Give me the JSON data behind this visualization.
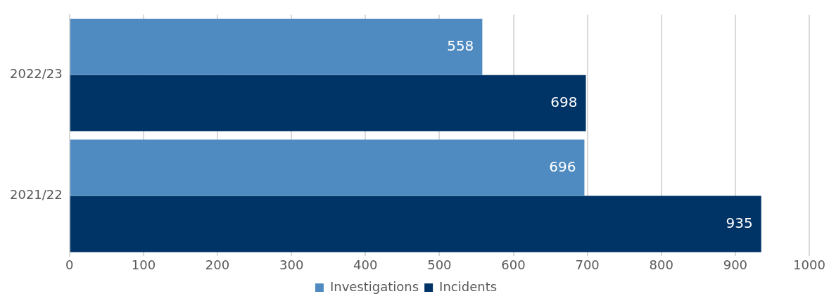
{
  "chart_data": {
    "type": "bar",
    "orientation": "horizontal",
    "categories": [
      "2022/23",
      "2021/22"
    ],
    "series": [
      {
        "name": "Investigations",
        "color": "#4f8bc0",
        "values": [
          558,
          696
        ]
      },
      {
        "name": "Incidents",
        "color": "#003366",
        "values": [
          698,
          935
        ]
      }
    ],
    "xlim": [
      0,
      1000
    ],
    "xticks": [
      0,
      100,
      200,
      300,
      400,
      500,
      600,
      700,
      800,
      900,
      1000
    ],
    "grid": "x",
    "legend": "bottom",
    "data_labels": true
  }
}
